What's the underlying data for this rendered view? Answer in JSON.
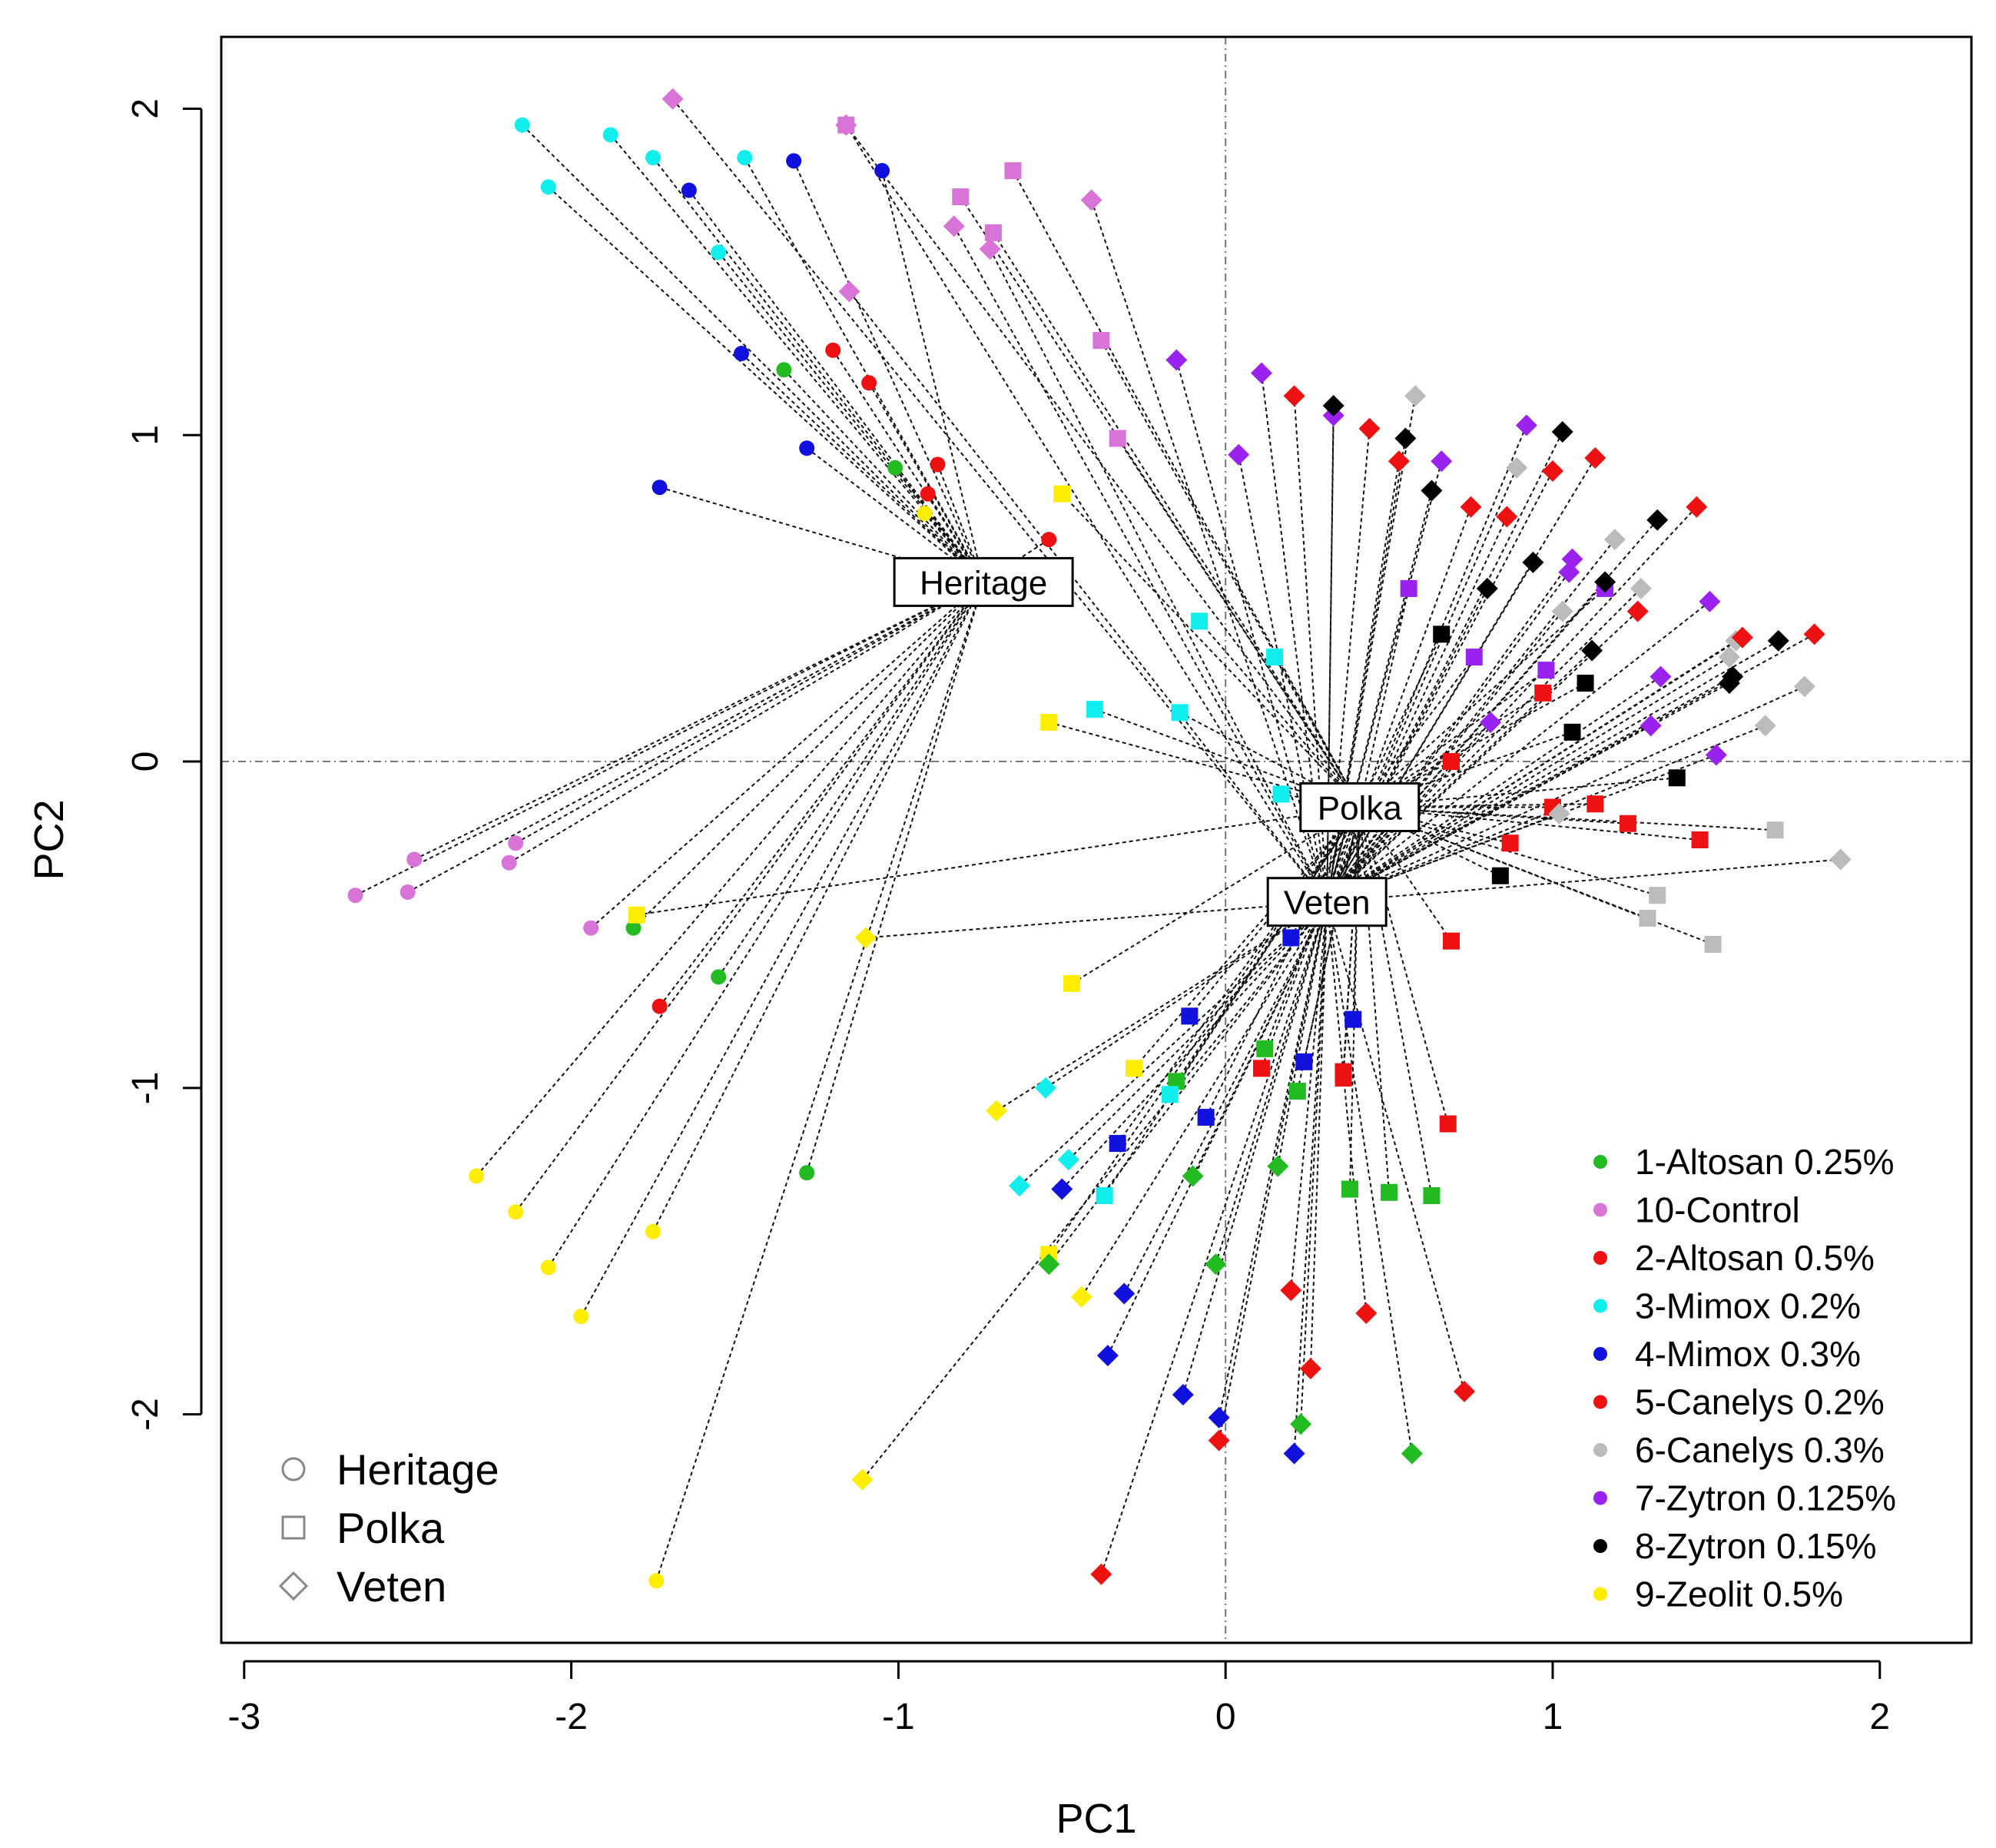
{
  "chart_data": {
    "type": "scatter",
    "xlabel": "PC1",
    "ylabel": "PC2",
    "xlim": [
      -3.07,
      2.28
    ],
    "ylim": [
      -2.7,
      2.22
    ],
    "xticks": [
      "-3",
      "-2",
      "-1",
      "0",
      "1",
      "2"
    ],
    "yticks": [
      "-2",
      "-1",
      "0",
      "1",
      "2"
    ],
    "reference_lines": {
      "x": 0,
      "y": 0,
      "style": "dotted"
    },
    "centroids": [
      {
        "name": "Heritage",
        "x": -0.74,
        "y": 0.55
      },
      {
        "name": "Polka",
        "x": 0.41,
        "y": -0.14
      },
      {
        "name": "Veten",
        "x": 0.31,
        "y": -0.43
      }
    ],
    "shape_legend": {
      "placement": "bottom-left",
      "items": [
        {
          "label": "Heritage",
          "shape": "circle"
        },
        {
          "label": "Polka",
          "shape": "square"
        },
        {
          "label": "Veten",
          "shape": "diamond"
        }
      ]
    },
    "color_legend": {
      "placement": "bottom-right",
      "items": [
        {
          "label": "1-Altosan 0.25%",
          "color": "#22bb22"
        },
        {
          "label": "10-Control",
          "color": "#d873d8"
        },
        {
          "label": "2-Altosan 0.5%",
          "color": "#ee1111"
        },
        {
          "label": "3-Mimox 0.2%",
          "color": "#11eeee"
        },
        {
          "label": "4-Mimox 0.3%",
          "color": "#1111dd"
        },
        {
          "label": "5-Canelys 0.2%",
          "color": "#ee1111"
        },
        {
          "label": "6-Canelys 0.3%",
          "color": "#bbbbbb"
        },
        {
          "label": "7-Zytron 0.125%",
          "color": "#9922ee"
        },
        {
          "label": "8-Zytron 0.15%",
          "color": "#000000"
        },
        {
          "label": "9-Zeolit 0.5%",
          "color": "#ffee00"
        }
      ]
    },
    "series": [
      {
        "name": "Heritage",
        "shape": "circle",
        "points": [
          [
            -2.15,
            1.95,
            "#11eeee"
          ],
          [
            -1.88,
            1.92,
            "#11eeee"
          ],
          [
            -1.75,
            1.85,
            "#11eeee"
          ],
          [
            -1.47,
            1.85,
            "#11eeee"
          ],
          [
            -2.07,
            1.76,
            "#11eeee"
          ],
          [
            -1.55,
            1.56,
            "#11eeee"
          ],
          [
            -1.32,
            1.84,
            "#1111dd"
          ],
          [
            -1.05,
            1.81,
            "#1111dd"
          ],
          [
            -1.64,
            1.75,
            "#1111dd"
          ],
          [
            -1.48,
            1.25,
            "#1111dd"
          ],
          [
            -1.28,
            0.96,
            "#1111dd"
          ],
          [
            -1.73,
            0.84,
            "#1111dd"
          ],
          [
            -1.35,
            1.2,
            "#22bb22"
          ],
          [
            -1.01,
            0.9,
            "#22bb22"
          ],
          [
            -1.2,
            1.26,
            "#ee1111"
          ],
          [
            -1.09,
            1.16,
            "#ee1111"
          ],
          [
            -0.88,
            0.91,
            "#ee1111"
          ],
          [
            -0.91,
            0.82,
            "#ee1111"
          ],
          [
            -0.54,
            0.68,
            "#ee1111"
          ],
          [
            -0.92,
            0.76,
            "#ffee00"
          ],
          [
            -2.66,
            -0.41,
            "#d873d8"
          ],
          [
            -2.48,
            -0.3,
            "#d873d8"
          ],
          [
            -2.17,
            -0.25,
            "#d873d8"
          ],
          [
            -2.5,
            -0.4,
            "#d873d8"
          ],
          [
            -2.19,
            -0.31,
            "#d873d8"
          ],
          [
            -1.94,
            -0.51,
            "#d873d8"
          ],
          [
            -1.81,
            -0.51,
            "#22bb22"
          ],
          [
            -1.55,
            -0.66,
            "#22bb22"
          ],
          [
            -1.28,
            -1.26,
            "#22bb22"
          ],
          [
            -1.73,
            -0.75,
            "#ee1111"
          ],
          [
            -2.29,
            -1.27,
            "#ffee00"
          ],
          [
            -2.17,
            -1.38,
            "#ffee00"
          ],
          [
            -2.07,
            -1.55,
            "#ffee00"
          ],
          [
            -1.97,
            -1.7,
            "#ffee00"
          ],
          [
            -1.75,
            -1.44,
            "#ffee00"
          ],
          [
            -1.74,
            -2.51,
            "#ffee00"
          ]
        ]
      },
      {
        "name": "Polka",
        "shape": "square",
        "points": [
          [
            -1.16,
            1.95,
            "#d873d8"
          ],
          [
            -0.65,
            1.81,
            "#d873d8"
          ],
          [
            -0.81,
            1.73,
            "#d873d8"
          ],
          [
            -0.71,
            1.62,
            "#d873d8"
          ],
          [
            -0.38,
            1.29,
            "#d873d8"
          ],
          [
            -0.33,
            0.99,
            "#d873d8"
          ],
          [
            -0.5,
            0.82,
            "#ffee00"
          ],
          [
            -0.54,
            0.12,
            "#ffee00"
          ],
          [
            -1.8,
            -0.47,
            "#ffee00"
          ],
          [
            -0.08,
            0.43,
            "#11eeee"
          ],
          [
            -0.4,
            0.16,
            "#11eeee"
          ],
          [
            -0.14,
            0.15,
            "#11eeee"
          ],
          [
            0.15,
            0.32,
            "#11eeee"
          ],
          [
            0.17,
            -0.1,
            "#11eeee"
          ],
          [
            0.56,
            0.53,
            "#9922ee"
          ],
          [
            0.76,
            0.32,
            "#9922ee"
          ],
          [
            0.98,
            0.28,
            "#9922ee"
          ],
          [
            1.16,
            0.53,
            "#9922ee"
          ],
          [
            0.66,
            0.39,
            "#000000"
          ],
          [
            1.1,
            0.24,
            "#000000"
          ],
          [
            1.06,
            0.09,
            "#000000"
          ],
          [
            1.38,
            -0.05,
            "#000000"
          ],
          [
            0.84,
            -0.35,
            "#000000"
          ],
          [
            0.69,
            0.0,
            "#ee1111"
          ],
          [
            0.97,
            0.21,
            "#ee1111"
          ],
          [
            1.0,
            -0.14,
            "#ee1111"
          ],
          [
            1.13,
            -0.13,
            "#ee1111"
          ],
          [
            1.23,
            -0.19,
            "#ee1111"
          ],
          [
            0.87,
            -0.25,
            "#ee1111"
          ],
          [
            1.45,
            -0.24,
            "#ee1111"
          ],
          [
            0.69,
            -0.55,
            "#ee1111"
          ],
          [
            0.11,
            -0.94,
            "#ee1111"
          ],
          [
            0.36,
            -0.95,
            "#ee1111"
          ],
          [
            0.36,
            -0.97,
            "#ee1111"
          ],
          [
            0.68,
            -1.11,
            "#ee1111"
          ],
          [
            1.68,
            -0.21,
            "#bbbbbb"
          ],
          [
            1.32,
            -0.41,
            "#bbbbbb"
          ],
          [
            1.29,
            -0.48,
            "#bbbbbb"
          ],
          [
            1.49,
            -0.56,
            "#bbbbbb"
          ],
          [
            0.2,
            -0.54,
            "#1111dd"
          ],
          [
            -0.11,
            -0.78,
            "#1111dd"
          ],
          [
            0.39,
            -0.79,
            "#1111dd"
          ],
          [
            0.24,
            -0.92,
            "#1111dd"
          ],
          [
            -0.06,
            -1.09,
            "#1111dd"
          ],
          [
            -0.33,
            -1.17,
            "#1111dd"
          ],
          [
            0.38,
            -1.31,
            "#22bb22"
          ],
          [
            0.5,
            -1.32,
            "#22bb22"
          ],
          [
            0.63,
            -1.33,
            "#22bb22"
          ],
          [
            0.22,
            -1.01,
            "#22bb22"
          ],
          [
            0.12,
            -0.88,
            "#22bb22"
          ],
          [
            -0.15,
            -0.98,
            "#22bb22"
          ],
          [
            -0.37,
            -1.33,
            "#11eeee"
          ],
          [
            -0.17,
            -1.02,
            "#11eeee"
          ],
          [
            -0.47,
            -0.68,
            "#ffee00"
          ],
          [
            -0.28,
            -0.94,
            "#ffee00"
          ],
          [
            -0.54,
            -1.51,
            "#ffee00"
          ]
        ]
      },
      {
        "name": "Veten",
        "shape": "diamond",
        "points": [
          [
            -1.69,
            2.03,
            "#d873d8"
          ],
          [
            -1.16,
            1.95,
            "#d873d8"
          ],
          [
            -0.41,
            1.72,
            "#d873d8"
          ],
          [
            -0.83,
            1.64,
            "#d873d8"
          ],
          [
            -0.72,
            1.57,
            "#d873d8"
          ],
          [
            -1.15,
            1.44,
            "#d873d8"
          ],
          [
            -0.15,
            1.23,
            "#9922ee"
          ],
          [
            0.11,
            1.19,
            "#9922ee"
          ],
          [
            0.33,
            1.06,
            "#9922ee"
          ],
          [
            0.04,
            0.94,
            "#9922ee"
          ],
          [
            0.66,
            0.92,
            "#9922ee"
          ],
          [
            0.92,
            1.03,
            "#9922ee"
          ],
          [
            1.06,
            0.62,
            "#9922ee"
          ],
          [
            1.05,
            0.58,
            "#9922ee"
          ],
          [
            1.48,
            0.49,
            "#9922ee"
          ],
          [
            1.33,
            0.26,
            "#9922ee"
          ],
          [
            1.3,
            0.11,
            "#9922ee"
          ],
          [
            1.5,
            0.02,
            "#9922ee"
          ],
          [
            0.81,
            0.12,
            "#9922ee"
          ],
          [
            0.58,
            1.12,
            "#bbbbbb"
          ],
          [
            0.89,
            0.9,
            "#bbbbbb"
          ],
          [
            1.19,
            0.68,
            "#bbbbbb"
          ],
          [
            1.27,
            0.53,
            "#bbbbbb"
          ],
          [
            1.03,
            0.46,
            "#bbbbbb"
          ],
          [
            1.56,
            0.37,
            "#bbbbbb"
          ],
          [
            1.54,
            0.32,
            "#bbbbbb"
          ],
          [
            1.77,
            0.23,
            "#bbbbbb"
          ],
          [
            1.65,
            0.11,
            "#bbbbbb"
          ],
          [
            1.88,
            -0.3,
            "#bbbbbb"
          ],
          [
            1.02,
            -0.16,
            "#bbbbbb"
          ],
          [
            0.33,
            1.09,
            "#000000"
          ],
          [
            0.55,
            0.99,
            "#000000"
          ],
          [
            1.03,
            1.01,
            "#000000"
          ],
          [
            0.63,
            0.83,
            "#000000"
          ],
          [
            1.32,
            0.74,
            "#000000"
          ],
          [
            0.94,
            0.61,
            "#000000"
          ],
          [
            0.8,
            0.53,
            "#000000"
          ],
          [
            1.16,
            0.55,
            "#000000"
          ],
          [
            1.12,
            0.34,
            "#000000"
          ],
          [
            1.69,
            0.37,
            "#000000"
          ],
          [
            1.55,
            0.26,
            "#000000"
          ],
          [
            1.54,
            0.24,
            "#000000"
          ],
          [
            0.21,
            1.12,
            "#ee1111"
          ],
          [
            0.44,
            1.02,
            "#ee1111"
          ],
          [
            0.53,
            0.92,
            "#ee1111"
          ],
          [
            0.75,
            0.78,
            "#ee1111"
          ],
          [
            0.86,
            0.75,
            "#ee1111"
          ],
          [
            1.0,
            0.89,
            "#ee1111"
          ],
          [
            1.13,
            0.93,
            "#ee1111"
          ],
          [
            1.44,
            0.78,
            "#ee1111"
          ],
          [
            1.26,
            0.46,
            "#ee1111"
          ],
          [
            1.58,
            0.38,
            "#ee1111"
          ],
          [
            1.8,
            0.39,
            "#ee1111"
          ],
          [
            0.2,
            -1.62,
            "#ee1111"
          ],
          [
            0.43,
            -1.69,
            "#ee1111"
          ],
          [
            0.26,
            -1.86,
            "#ee1111"
          ],
          [
            0.73,
            -1.93,
            "#ee1111"
          ],
          [
            -0.02,
            -2.08,
            "#ee1111"
          ],
          [
            -0.38,
            -2.49,
            "#ee1111"
          ],
          [
            -0.5,
            -1.31,
            "#1111dd"
          ],
          [
            -0.31,
            -1.63,
            "#1111dd"
          ],
          [
            -0.36,
            -1.82,
            "#1111dd"
          ],
          [
            -0.13,
            -1.94,
            "#1111dd"
          ],
          [
            -0.02,
            -2.01,
            "#1111dd"
          ],
          [
            0.21,
            -2.12,
            "#1111dd"
          ],
          [
            -0.1,
            -1.27,
            "#22bb22"
          ],
          [
            0.16,
            -1.24,
            "#22bb22"
          ],
          [
            -0.03,
            -1.54,
            "#22bb22"
          ],
          [
            -0.54,
            -1.54,
            "#22bb22"
          ],
          [
            0.23,
            -2.03,
            "#22bb22"
          ],
          [
            0.57,
            -2.12,
            "#22bb22"
          ],
          [
            -0.63,
            -1.3,
            "#11eeee"
          ],
          [
            -0.48,
            -1.22,
            "#11eeee"
          ],
          [
            -0.55,
            -1.0,
            "#11eeee"
          ],
          [
            -1.1,
            -0.54,
            "#ffee00"
          ],
          [
            -0.7,
            -1.07,
            "#ffee00"
          ],
          [
            -0.44,
            -1.64,
            "#ffee00"
          ],
          [
            -1.11,
            -2.2,
            "#ffee00"
          ]
        ]
      }
    ]
  }
}
